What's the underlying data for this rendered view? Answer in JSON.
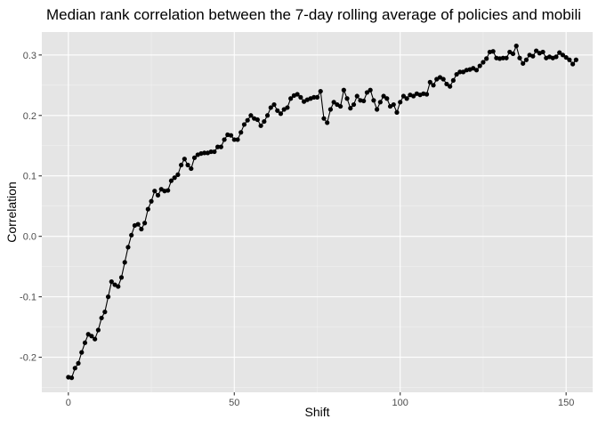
{
  "chart_data": {
    "type": "line",
    "title": "Median rank correlation between the 7-day rolling average of policies and mobili",
    "xlabel": "Shift",
    "ylabel": "Correlation",
    "xlim": [
      -8,
      158
    ],
    "ylim": [
      -0.258,
      0.338
    ],
    "x_ticks": [
      0,
      50,
      100,
      150
    ],
    "y_ticks": [
      -0.2,
      -0.1,
      0.0,
      0.1,
      0.2,
      0.3
    ],
    "x_tick_labels": [
      "0",
      "50",
      "100",
      "150"
    ],
    "y_tick_labels": [
      "-0.2",
      "-0.1",
      "0.0",
      "0.1",
      "0.2",
      "0.3"
    ],
    "grid": true,
    "legend": "none",
    "colors": {
      "panel": "#e5e5e5",
      "grid_major": "#ffffff",
      "grid_minor": "#f2f2f2",
      "series": "#000000"
    },
    "series": [
      {
        "x_start": 0,
        "x_step": 1,
        "values": [
          -0.233,
          -0.234,
          -0.218,
          -0.21,
          -0.192,
          -0.176,
          -0.162,
          -0.165,
          -0.17,
          -0.155,
          -0.135,
          -0.125,
          -0.1,
          -0.075,
          -0.08,
          -0.083,
          -0.068,
          -0.043,
          -0.018,
          0.002,
          0.018,
          0.02,
          0.012,
          0.022,
          0.045,
          0.058,
          0.075,
          0.068,
          0.078,
          0.075,
          0.076,
          0.092,
          0.097,
          0.102,
          0.118,
          0.128,
          0.118,
          0.112,
          0.13,
          0.135,
          0.137,
          0.138,
          0.138,
          0.14,
          0.14,
          0.148,
          0.148,
          0.16,
          0.168,
          0.167,
          0.16,
          0.16,
          0.172,
          0.185,
          0.192,
          0.2,
          0.195,
          0.193,
          0.183,
          0.19,
          0.2,
          0.213,
          0.218,
          0.208,
          0.203,
          0.21,
          0.213,
          0.228,
          0.233,
          0.235,
          0.23,
          0.223,
          0.226,
          0.228,
          0.23,
          0.23,
          0.24,
          0.195,
          0.188,
          0.21,
          0.222,
          0.218,
          0.215,
          0.242,
          0.228,
          0.212,
          0.218,
          0.232,
          0.225,
          0.224,
          0.238,
          0.242,
          0.225,
          0.21,
          0.222,
          0.232,
          0.228,
          0.215,
          0.218,
          0.205,
          0.222,
          0.232,
          0.228,
          0.234,
          0.232,
          0.236,
          0.234,
          0.236,
          0.235,
          0.255,
          0.25,
          0.26,
          0.263,
          0.26,
          0.252,
          0.248,
          0.258,
          0.268,
          0.272,
          0.272,
          0.275,
          0.276,
          0.278,
          0.275,
          0.282,
          0.288,
          0.294,
          0.305,
          0.306,
          0.295,
          0.294,
          0.295,
          0.295,
          0.305,
          0.302,
          0.315,
          0.295,
          0.286,
          0.292,
          0.3,
          0.298,
          0.307,
          0.303,
          0.305,
          0.295,
          0.297,
          0.295,
          0.297,
          0.304,
          0.3,
          0.296,
          0.292,
          0.285,
          0.292
        ]
      }
    ]
  }
}
